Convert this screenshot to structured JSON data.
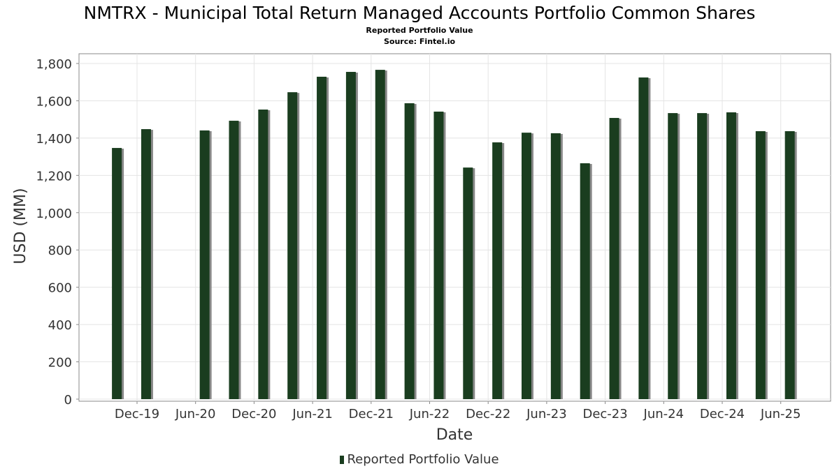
{
  "chart_data": {
    "type": "bar",
    "title": "NMTRX - Municipal Total Return Managed Accounts Portfolio Common Shares",
    "subtitle": "Reported Portfolio Value",
    "source": "Source: Fintel.io",
    "xlabel": "Date",
    "ylabel": "USD (MM)",
    "ylim": [
      0,
      1850
    ],
    "yticks": [
      0,
      200,
      400,
      600,
      800,
      1000,
      1200,
      1400,
      1600,
      1800
    ],
    "ytick_labels": [
      "0",
      "200",
      "400",
      "600",
      "800",
      "1,000",
      "1,200",
      "1,400",
      "1,600",
      "1,800"
    ],
    "xtick_labels": [
      "Dec-19",
      "Jun-20",
      "Dec-20",
      "Jun-21",
      "Dec-21",
      "Jun-22",
      "Dec-22",
      "Jun-23",
      "Dec-23",
      "Jun-24",
      "Dec-24",
      "Jun-25"
    ],
    "grid": true,
    "legend": {
      "position": "bottom-center",
      "entries": [
        "Reported Portfolio Value"
      ]
    },
    "series": [
      {
        "name": "Reported Portfolio Value",
        "color": "#1a3d1f",
        "months_from_dec19": [
          -2,
          1,
          7,
          10,
          13,
          16,
          19,
          22,
          25,
          28,
          31,
          34,
          37,
          40,
          43,
          46,
          49,
          52,
          55,
          58,
          61,
          64,
          67
        ],
        "values": [
          1347,
          1448,
          1441,
          1493,
          1553,
          1646,
          1729,
          1755,
          1766,
          1587,
          1542,
          1242,
          1377,
          1429,
          1426,
          1265,
          1508,
          1725,
          1534,
          1534,
          1538,
          1437,
          1437
        ]
      }
    ]
  }
}
